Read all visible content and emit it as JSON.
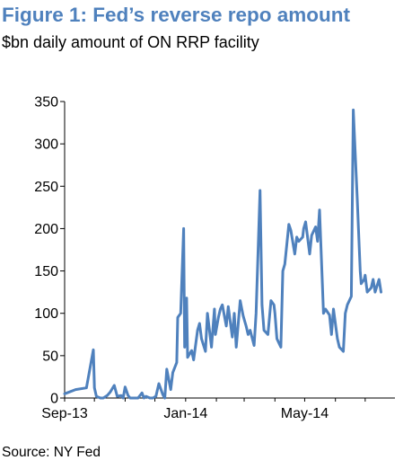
{
  "title": "Figure 1: Fed’s reverse repo amount",
  "subtitle": "$bn daily amount of ON RRP facility",
  "source": "Source: NY Fed",
  "colors": {
    "title": "#4f81bd",
    "line": "#4f81bd",
    "axis": "#000000"
  },
  "chart_data": {
    "type": "line",
    "xlabel": "",
    "ylabel": "",
    "xlim": [
      "2013-09-01",
      "2014-07-31"
    ],
    "ylim": [
      0,
      350
    ],
    "yticks": [
      0,
      50,
      100,
      150,
      200,
      250,
      300,
      350
    ],
    "xticks": [
      {
        "label": "Sep-13",
        "date": "2013-09-01"
      },
      {
        "label": "Jan-14",
        "date": "2014-01-01"
      },
      {
        "label": "May-14",
        "date": "2014-05-01"
      }
    ],
    "grid": false,
    "legend": "none",
    "series": [
      {
        "x": [
          "2013-09-01",
          "2013-09-12",
          "2013-09-23",
          "2013-09-30",
          "2013-10-01",
          "2013-10-03",
          "2013-10-07",
          "2013-10-10",
          "2013-10-14",
          "2013-10-17",
          "2013-10-21",
          "2013-10-24",
          "2013-10-28",
          "2013-10-30",
          "2013-11-01",
          "2013-11-04",
          "2013-11-06",
          "2013-11-08",
          "2013-11-12",
          "2013-11-14",
          "2013-11-18",
          "2013-11-20",
          "2013-11-22",
          "2013-11-26",
          "2013-11-29",
          "2013-12-02",
          "2013-12-05",
          "2013-12-09",
          "2013-12-11",
          "2013-12-13",
          "2013-12-17",
          "2013-12-19",
          "2013-12-23",
          "2013-12-24",
          "2013-12-27",
          "2013-12-30",
          "2013-12-31",
          "2014-01-02",
          "2014-01-03",
          "2014-01-07",
          "2014-01-09",
          "2014-01-13",
          "2014-01-15",
          "2014-01-17",
          "2014-01-21",
          "2014-01-23",
          "2014-01-27",
          "2014-01-30",
          "2014-01-31",
          "2014-02-03",
          "2014-02-05",
          "2014-02-07",
          "2014-02-11",
          "2014-02-13",
          "2014-02-17",
          "2014-02-19",
          "2014-02-21",
          "2014-02-25",
          "2014-02-28",
          "2014-03-03",
          "2014-03-05",
          "2014-03-07",
          "2014-03-11",
          "2014-03-13",
          "2014-03-17",
          "2014-03-19",
          "2014-03-21",
          "2014-03-25",
          "2014-03-28",
          "2014-03-31",
          "2014-04-01",
          "2014-04-03",
          "2014-04-07",
          "2014-04-09",
          "2014-04-11",
          "2014-04-15",
          "2014-04-17",
          "2014-04-21",
          "2014-04-23",
          "2014-04-25",
          "2014-04-29",
          "2014-04-30",
          "2014-05-02",
          "2014-05-06",
          "2014-05-08",
          "2014-05-12",
          "2014-05-14",
          "2014-05-16",
          "2014-05-20",
          "2014-05-22",
          "2014-05-26",
          "2014-05-28",
          "2014-05-30",
          "2014-06-03",
          "2014-06-05",
          "2014-06-09",
          "2014-06-11",
          "2014-06-13",
          "2014-06-17",
          "2014-06-19",
          "2014-06-23",
          "2014-06-26",
          "2014-06-27",
          "2014-06-30",
          "2014-07-01",
          "2014-07-03",
          "2014-07-07",
          "2014-07-09",
          "2014-07-11",
          "2014-07-15",
          "2014-07-17"
        ],
        "y": [
          5,
          10,
          12,
          57,
          12,
          2,
          0,
          0,
          3,
          7,
          15,
          2,
          3,
          0,
          13,
          3,
          0,
          0,
          0,
          0,
          6,
          0,
          2,
          0,
          0,
          2,
          17,
          4,
          0,
          34,
          10,
          30,
          42,
          95,
          100,
          200,
          60,
          118,
          48,
          56,
          45,
          80,
          88,
          70,
          55,
          100,
          60,
          105,
          75,
          95,
          105,
          110,
          85,
          108,
          72,
          100,
          60,
          115,
          97,
          85,
          75,
          80,
          62,
          100,
          245,
          110,
          80,
          75,
          115,
          110,
          100,
          70,
          60,
          150,
          158,
          205,
          198,
          170,
          190,
          185,
          190,
          200,
          208,
          170,
          192,
          202,
          185,
          222,
          100,
          105,
          98,
          75,
          105,
          70,
          60,
          55,
          100,
          110,
          120,
          340,
          235,
          150,
          135,
          140,
          145,
          125,
          130,
          140,
          125,
          140,
          125
        ]
      }
    ]
  }
}
